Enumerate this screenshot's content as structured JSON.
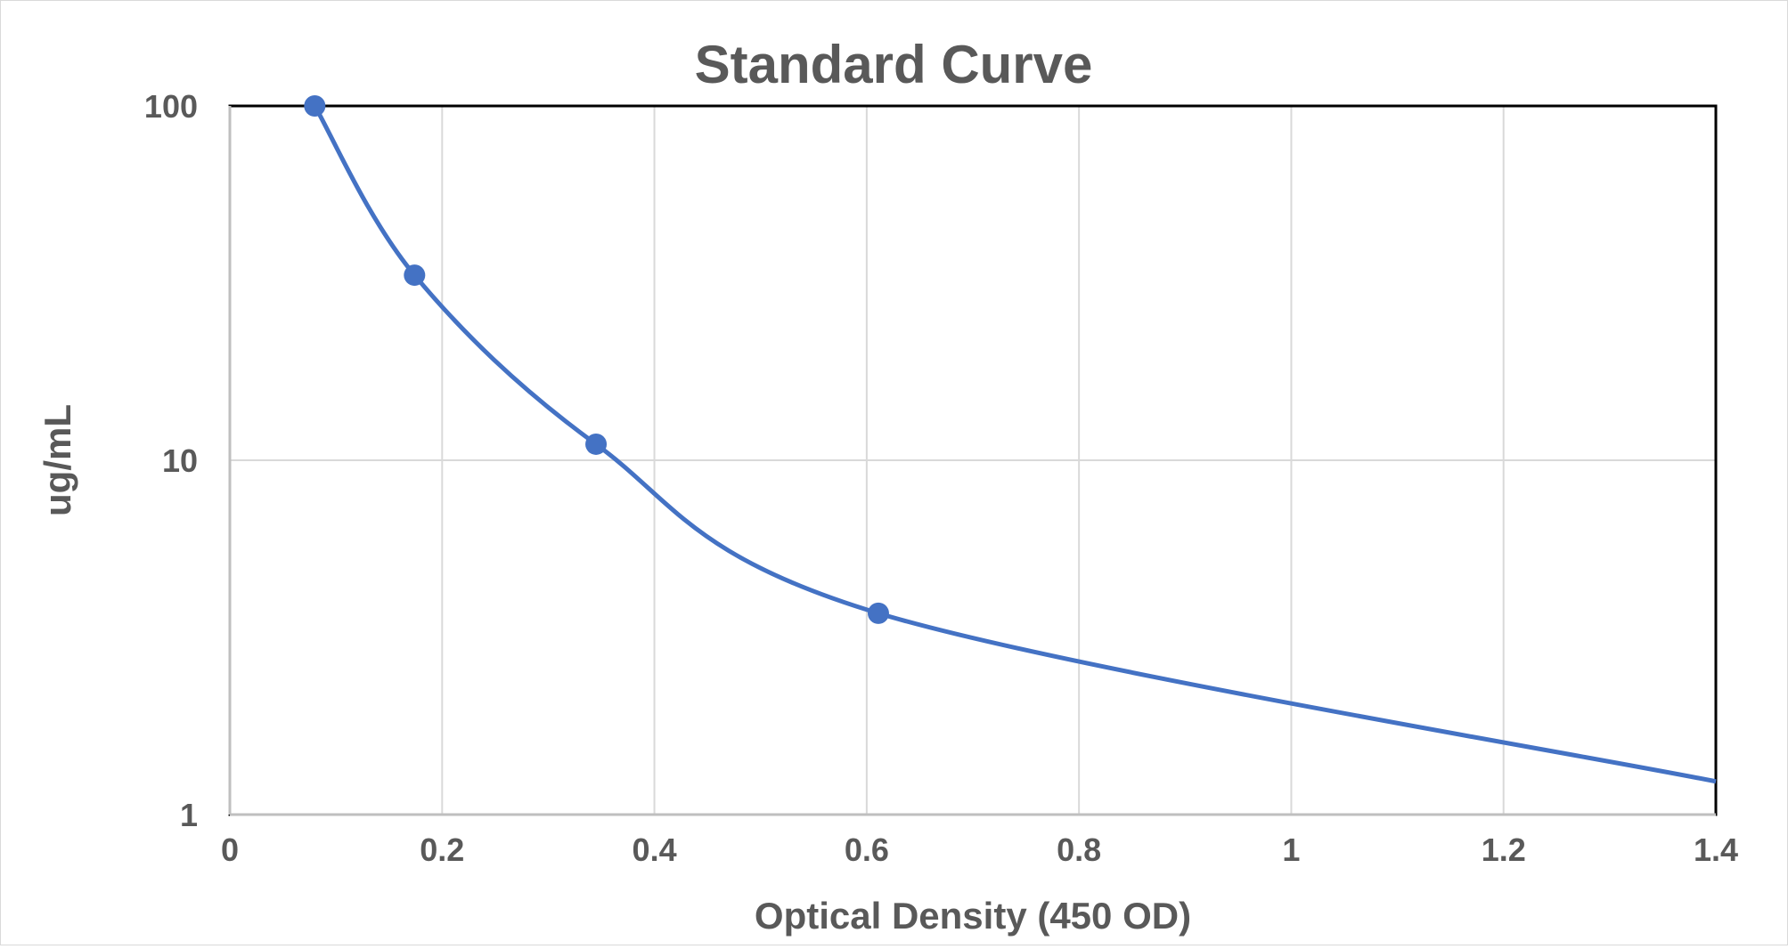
{
  "chart_data": {
    "type": "line",
    "title": "Standard Curve",
    "xlabel": "Optical Density (450 OD)",
    "ylabel": "ug/mL",
    "xlim": [
      0,
      1.4
    ],
    "ylim": [
      1,
      100
    ],
    "yscale": "log",
    "x_ticks": [
      "0",
      "0.2",
      "0.4",
      "0.6",
      "0.8",
      "1",
      "1.2",
      "1.4"
    ],
    "y_ticks": [
      "1",
      "10",
      "100"
    ],
    "grid": true,
    "legend": "none",
    "series_color": "#4472c4",
    "series": [
      {
        "markers": [
          {
            "x": 0.08,
            "y": 100
          },
          {
            "x": 0.174,
            "y": 33.3
          },
          {
            "x": 0.345,
            "y": 11.1
          },
          {
            "x": 0.611,
            "y": 3.7
          }
        ],
        "line": [
          {
            "x": 0.08,
            "y": 100
          },
          {
            "x": 0.174,
            "y": 33.3
          },
          {
            "x": 0.345,
            "y": 11.1
          },
          {
            "x": 0.611,
            "y": 3.7
          },
          {
            "x": 1.4,
            "y": 1.24
          }
        ]
      }
    ]
  }
}
